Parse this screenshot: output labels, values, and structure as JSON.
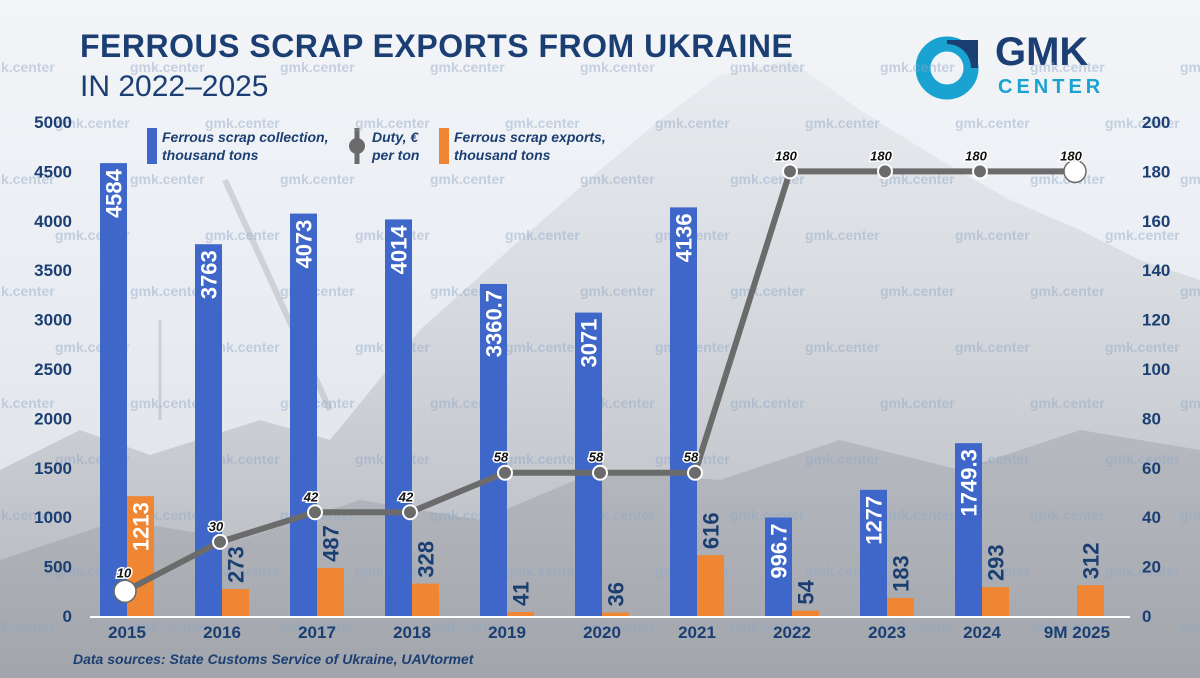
{
  "header": {
    "title_line1": "FERROUS SCRAP EXPORTS FROM UKRAINE",
    "title_line2": "IN 2022–2025"
  },
  "logo": {
    "name": "GMK",
    "sub": "CENTER",
    "icon": "gmk-ring-icon",
    "ring_color": "#1aa3d0",
    "dark_color": "#1c3f73"
  },
  "watermark": "gmk.center",
  "source": "Data sources: State Customs Service of Ukraine, UAVtormet",
  "legend": {
    "collection": "Ferrous scrap collection,\nthousand tons",
    "duty": "Duty, €\nper ton",
    "exports": "Ferrous scrap exports,\nthousand tons"
  },
  "colors": {
    "collection": "#3f67c9",
    "exports": "#ee8633",
    "duty": "#6b6b6b",
    "axis_text": "#1c3f73"
  },
  "chart_data": {
    "type": "bar",
    "categories": [
      "2015",
      "2016",
      "2017",
      "2018",
      "2019",
      "2020",
      "2021",
      "2022",
      "2023",
      "2024",
      "9M 2025"
    ],
    "series": [
      {
        "name": "Ferrous scrap collection, thousand tons",
        "axis": "left",
        "values": [
          4584,
          3763,
          4073,
          4014,
          3360.7,
          3071,
          4136,
          996.7,
          1277,
          1749.3,
          null
        ],
        "labels": [
          "4584",
          "3763",
          "4073",
          "4014",
          "3360.7",
          "3071",
          "4136",
          "996.7",
          "1277",
          "1749.3",
          ""
        ]
      },
      {
        "name": "Ferrous scrap exports, thousand tons",
        "axis": "left",
        "values": [
          1213,
          273,
          487,
          328,
          41,
          36,
          616,
          54,
          183,
          293,
          312
        ],
        "labels": [
          "1213",
          "273",
          "487",
          "328",
          "41",
          "36",
          "616",
          "54",
          "183",
          "293",
          "312"
        ]
      },
      {
        "name": "Duty, € per ton",
        "axis": "right",
        "type": "line",
        "values": [
          10,
          30,
          42,
          42,
          58,
          58,
          58,
          180,
          180,
          180,
          180
        ],
        "labels": [
          "10",
          "30",
          "42",
          "42",
          "58",
          "58",
          "58",
          "180",
          "180",
          "180",
          "180"
        ]
      }
    ],
    "y_left": {
      "min": 0,
      "max": 5000,
      "ticks": [
        "0",
        "500",
        "1000",
        "1500",
        "2000",
        "2500",
        "3000",
        "3500",
        "4000",
        "4500",
        "5000"
      ]
    },
    "y_right": {
      "min": 0,
      "max": 200,
      "ticks": [
        "0",
        "20",
        "40",
        "60",
        "80",
        "100",
        "120",
        "140",
        "160",
        "180",
        "200"
      ]
    },
    "legend_position": "top-left",
    "grid": false
  }
}
